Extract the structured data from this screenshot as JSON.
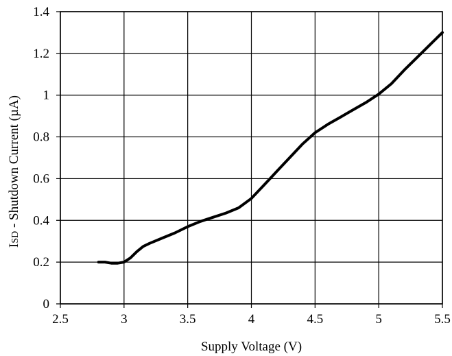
{
  "chart_data": {
    "type": "line",
    "title": "",
    "xlabel": "Supply Voltage (V)",
    "ylabel": {
      "prefix_large": "I",
      "prefix_small": "SD",
      "rest": " - Shutdown Current  (µA)"
    },
    "xlim": [
      2.5,
      5.5
    ],
    "ylim": [
      0,
      1.4
    ],
    "xticks": [
      2.5,
      3,
      3.5,
      4,
      4.5,
      5,
      5.5
    ],
    "yticks": [
      0,
      0.2,
      0.4,
      0.6,
      0.8,
      1,
      1.2,
      1.4
    ],
    "xtick_labels": [
      "2.5",
      "3",
      "3.5",
      "4",
      "4.5",
      "5",
      "5.5"
    ],
    "ytick_labels": [
      "0",
      "0.2",
      "0.4",
      "0.6",
      "0.8",
      "1",
      "1.2",
      "1.4"
    ],
    "grid": true,
    "series": [
      {
        "color": "#000000",
        "x": [
          2.8,
          2.85,
          2.9,
          2.95,
          3.0,
          3.05,
          3.1,
          3.15,
          3.2,
          3.3,
          3.4,
          3.5,
          3.6,
          3.7,
          3.8,
          3.9,
          4.0,
          4.1,
          4.2,
          4.3,
          4.4,
          4.5,
          4.6,
          4.7,
          4.8,
          4.9,
          5.0,
          5.1,
          5.2,
          5.3,
          5.4,
          5.5
        ],
        "y": [
          0.2,
          0.2,
          0.195,
          0.195,
          0.2,
          0.22,
          0.25,
          0.275,
          0.29,
          0.315,
          0.34,
          0.37,
          0.395,
          0.415,
          0.435,
          0.46,
          0.505,
          0.57,
          0.635,
          0.7,
          0.765,
          0.82,
          0.86,
          0.895,
          0.93,
          0.965,
          1.005,
          1.055,
          1.12,
          1.18,
          1.24,
          1.3
        ]
      }
    ]
  }
}
